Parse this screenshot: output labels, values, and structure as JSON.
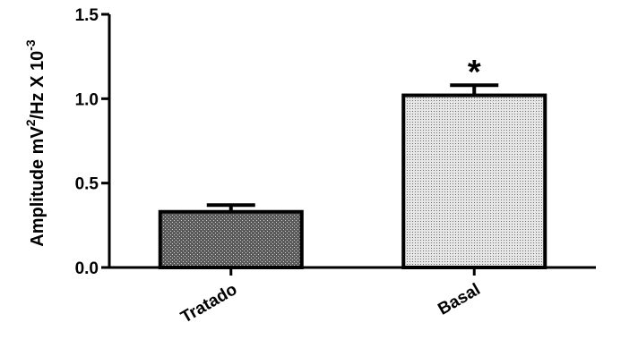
{
  "chart_data": {
    "type": "bar",
    "categories": [
      "Tratado",
      "Basal"
    ],
    "values": [
      0.33,
      1.02
    ],
    "error_upper": [
      0.37,
      1.08
    ],
    "ylabel": {
      "prefix": "Amplitude mV",
      "sup1": "2",
      "middle": "/Hz X 10",
      "sup2": "-3"
    },
    "ylim": [
      0,
      1.5
    ],
    "yticks": [
      0.0,
      0.5,
      1.0,
      1.5
    ],
    "ytick_labels": [
      "0.0",
      "0.5",
      "1.0",
      "1.5"
    ],
    "annotations": [
      {
        "category": "Basal",
        "text": "*"
      }
    ],
    "fill_patterns": [
      "dense-crosshatch",
      "light-stipple"
    ],
    "grid": false
  }
}
